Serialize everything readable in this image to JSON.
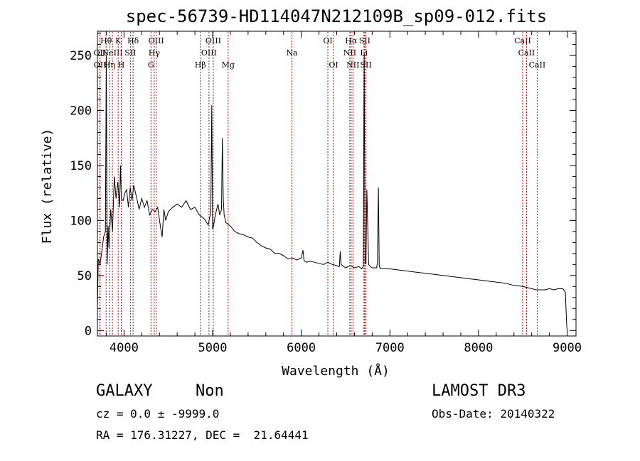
{
  "chart_data": {
    "type": "line",
    "title": "spec-56739-HD114047N212109B_sp09-012.fits",
    "xlabel": "Wavelength (Å)",
    "ylabel": "Flux (relative)",
    "xlim": [
      3700,
      9100
    ],
    "ylim": [
      -5,
      272
    ],
    "x_ticks": [
      4000,
      5000,
      6000,
      7000,
      8000,
      9000
    ],
    "x_tick_labels": [
      "4000",
      "5000",
      "6000",
      "7000",
      "8000",
      "9000"
    ],
    "y_ticks": [
      0,
      50,
      100,
      150,
      200,
      250
    ],
    "y_tick_labels": [
      "0",
      "50",
      "100",
      "150",
      "200",
      "250"
    ],
    "grid": false,
    "line_color": "#000000",
    "marker_color": "#cc0000",
    "series": [
      {
        "x": [
          3700,
          3710,
          3730,
          3750,
          3770,
          3790,
          3800,
          3810,
          3820,
          3830,
          3850,
          3870,
          3890,
          3910,
          3930,
          3950,
          3960,
          3970,
          3990,
          4010,
          4030,
          4050,
          4070,
          4090,
          4110,
          4130,
          4150,
          4170,
          4200,
          4230,
          4260,
          4290,
          4320,
          4350,
          4380,
          4410,
          4430,
          4450,
          4470,
          4500,
          4550,
          4600,
          4650,
          4700,
          4750,
          4800,
          4850,
          4900,
          4950,
          4980,
          4990,
          5000,
          5010,
          5030,
          5060,
          5080,
          5100,
          5110,
          5120,
          5130,
          5150,
          5200,
          5250,
          5300,
          5350,
          5400,
          5450,
          5500,
          5550,
          5600,
          5650,
          5700,
          5750,
          5800,
          5850,
          5900,
          5950,
          6000,
          6020,
          6030,
          6040,
          6060,
          6100,
          6150,
          6200,
          6250,
          6300,
          6350,
          6400,
          6430,
          6440,
          6450,
          6480,
          6500,
          6550,
          6600,
          6650,
          6680,
          6700,
          6710,
          6720,
          6730,
          6740,
          6760,
          6780,
          6800,
          6850,
          6860,
          6870,
          6880,
          6890,
          6900,
          6950,
          7000,
          7100,
          7200,
          7300,
          7400,
          7500,
          7600,
          7700,
          7800,
          7900,
          8000,
          8100,
          8200,
          8300,
          8400,
          8500,
          8600,
          8650,
          8700,
          8750,
          8800,
          8850,
          8900,
          8950,
          8980,
          8995,
          9000
        ],
        "y": [
          20,
          65,
          60,
          72,
          85,
          90,
          250,
          60,
          95,
          75,
          110,
          90,
          140,
          120,
          135,
          112,
          150,
          120,
          118,
          125,
          128,
          112,
          130,
          118,
          132,
          125,
          118,
          110,
          120,
          112,
          118,
          105,
          110,
          108,
          112,
          95,
          85,
          110,
          100,
          108,
          112,
          115,
          112,
          118,
          110,
          112,
          105,
          102,
          96,
          108,
          205,
          92,
          95,
          105,
          115,
          105,
          110,
          175,
          120,
          105,
          98,
          95,
          90,
          88,
          87,
          85,
          84,
          80,
          77,
          75,
          74,
          70,
          70,
          68,
          65,
          66,
          64,
          66,
          73,
          64,
          63,
          62,
          63,
          62,
          61,
          60,
          62,
          60,
          59,
          58,
          72,
          60,
          58,
          57,
          59,
          57,
          58,
          56,
          58,
          252,
          62,
          60,
          128,
          60,
          58,
          57,
          57,
          62,
          130,
          58,
          57,
          56,
          56,
          56,
          55,
          54,
          53,
          52,
          51,
          50,
          49,
          48,
          47,
          46,
          45,
          44,
          43,
          41,
          40,
          38,
          37,
          37,
          37,
          38,
          37,
          38,
          38,
          35,
          5,
          0
        ]
      }
    ],
    "line_markers": [
      {
        "wavelength": 3727,
        "label": "OII",
        "row": 2
      },
      {
        "wavelength": 3729,
        "label": "OII",
        "row": 3
      },
      {
        "wavelength": 3798,
        "label": "Hθ",
        "row": 1
      },
      {
        "wavelength": 3835,
        "label": "Hη",
        "row": 3
      },
      {
        "wavelength": 3869,
        "label": "NeIII",
        "row": 2
      },
      {
        "wavelength": 3934,
        "label": "K",
        "row": 1
      },
      {
        "wavelength": 3969,
        "label": "H",
        "row": 3
      },
      {
        "wavelength": 4072,
        "label": "SII",
        "row": 2
      },
      {
        "wavelength": 4102,
        "label": "Hδ",
        "row": 1
      },
      {
        "wavelength": 4304,
        "label": "G",
        "row": 3
      },
      {
        "wavelength": 4341,
        "label": "Hγ",
        "row": 2
      },
      {
        "wavelength": 4363,
        "label": "OIII",
        "row": 1
      },
      {
        "wavelength": 4861,
        "label": "Hβ",
        "row": 3
      },
      {
        "wavelength": 4959,
        "label": "OIII",
        "row": 2
      },
      {
        "wavelength": 5007,
        "label": "OIII",
        "row": 1
      },
      {
        "wavelength": 5175,
        "label": "Mg",
        "row": 3
      },
      {
        "wavelength": 5894,
        "label": "Na",
        "row": 2
      },
      {
        "wavelength": 6300,
        "label": "OI",
        "row": 1
      },
      {
        "wavelength": 6364,
        "label": "OI",
        "row": 3
      },
      {
        "wavelength": 6548,
        "label": "NII",
        "row": 2
      },
      {
        "wavelength": 6563,
        "label": "Hα",
        "row": 1
      },
      {
        "wavelength": 6583,
        "label": "NII",
        "row": 3
      },
      {
        "wavelength": 6707,
        "label": "Li",
        "row": 2
      },
      {
        "wavelength": 6716,
        "label": "SII",
        "row": 1
      },
      {
        "wavelength": 6730,
        "label": "SII",
        "row": 3
      },
      {
        "wavelength": 8498,
        "label": "CaII",
        "row": 1
      },
      {
        "wavelength": 8542,
        "label": "CaII",
        "row": 2
      },
      {
        "wavelength": 8662,
        "label": "CaII",
        "row": 3
      }
    ]
  },
  "info": {
    "object_class": "GALAXY",
    "object_subclass": "Non",
    "survey": "LAMOST DR3",
    "cz": "cz = 0.0 ± -9999.0",
    "obs_date": "Obs-Date: 20140322",
    "radec": "RA = 176.31227, DEC =  21.64441"
  }
}
